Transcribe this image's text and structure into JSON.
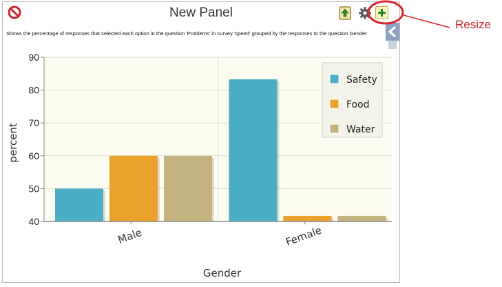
{
  "panel": {
    "title": "New Panel",
    "description": "Shows the percentage of responses that selected each option in the question 'Problems' in survey 'speed' grouped by the responses to the question Gender"
  },
  "icons": {
    "delete": "prohibited-icon",
    "export": "export-icon",
    "settings": "gear-icon",
    "resize": "plus-icon",
    "sidebar": "chevron-left-icon"
  },
  "annotation": {
    "label": "Resize",
    "color": "#c9252c"
  },
  "chart_data": {
    "type": "bar",
    "categories": [
      "Male",
      "Female"
    ],
    "series": [
      {
        "name": "Safety",
        "values": [
          50,
          83.3
        ],
        "color": "#4aafc4"
      },
      {
        "name": "Food",
        "values": [
          60,
          41.7
        ],
        "color": "#eaa22a"
      },
      {
        "name": "Water",
        "values": [
          60,
          41.7
        ],
        "color": "#c5b37f"
      }
    ],
    "xlabel": "Gender",
    "ylabel": "percent",
    "ylim": [
      40,
      90
    ],
    "yticks": [
      40,
      50,
      60,
      70,
      80,
      90
    ],
    "grid": true,
    "legend": "top-right"
  }
}
